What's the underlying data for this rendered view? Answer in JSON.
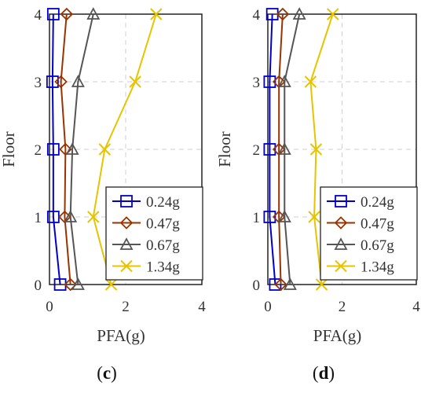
{
  "chart_data": [
    {
      "type": "line",
      "panel_label": "c",
      "xlabel": "PFA(g)",
      "ylabel": "Floor",
      "xlim": [
        0,
        4
      ],
      "ylim": [
        0,
        4
      ],
      "xticks": [
        "0",
        "2",
        "4"
      ],
      "yticks": [
        "0",
        "1",
        "2",
        "3",
        "4"
      ],
      "grid": true,
      "legend_position": "bottom-right",
      "y": [
        0,
        1,
        2,
        3,
        4
      ],
      "series": [
        {
          "name": "0.24g",
          "color": "#0000cc",
          "marker": "square",
          "x": [
            0.28,
            0.1,
            0.1,
            0.08,
            0.1
          ]
        },
        {
          "name": "0.47g",
          "color": "#993300",
          "marker": "diamond",
          "x": [
            0.55,
            0.4,
            0.42,
            0.3,
            0.45
          ]
        },
        {
          "name": "0.67g",
          "color": "#555555",
          "marker": "triangle",
          "x": [
            0.75,
            0.55,
            0.6,
            0.75,
            1.15
          ]
        },
        {
          "name": "1.34g",
          "color": "#e6c400",
          "marker": "x",
          "x": [
            1.62,
            1.15,
            1.45,
            2.25,
            2.8
          ]
        }
      ]
    },
    {
      "type": "line",
      "panel_label": "d",
      "xlabel": "PFA(g)",
      "ylabel": "Floor",
      "xlim": [
        0,
        4
      ],
      "ylim": [
        0,
        4
      ],
      "xticks": [
        "0",
        "2",
        "4"
      ],
      "yticks": [
        "0",
        "1",
        "2",
        "3",
        "4"
      ],
      "grid": true,
      "legend_position": "bottom-right",
      "y": [
        0,
        1,
        2,
        3,
        4
      ],
      "series": [
        {
          "name": "0.24g",
          "color": "#0000cc",
          "marker": "square",
          "x": [
            0.2,
            0.05,
            0.05,
            0.05,
            0.12
          ]
        },
        {
          "name": "0.47g",
          "color": "#993300",
          "marker": "diamond",
          "x": [
            0.35,
            0.3,
            0.3,
            0.3,
            0.4
          ]
        },
        {
          "name": "0.67g",
          "color": "#555555",
          "marker": "triangle",
          "x": [
            0.6,
            0.45,
            0.45,
            0.45,
            0.85
          ]
        },
        {
          "name": "1.34g",
          "color": "#e6c400",
          "marker": "x",
          "x": [
            1.45,
            1.25,
            1.3,
            1.15,
            1.75
          ]
        }
      ]
    }
  ]
}
